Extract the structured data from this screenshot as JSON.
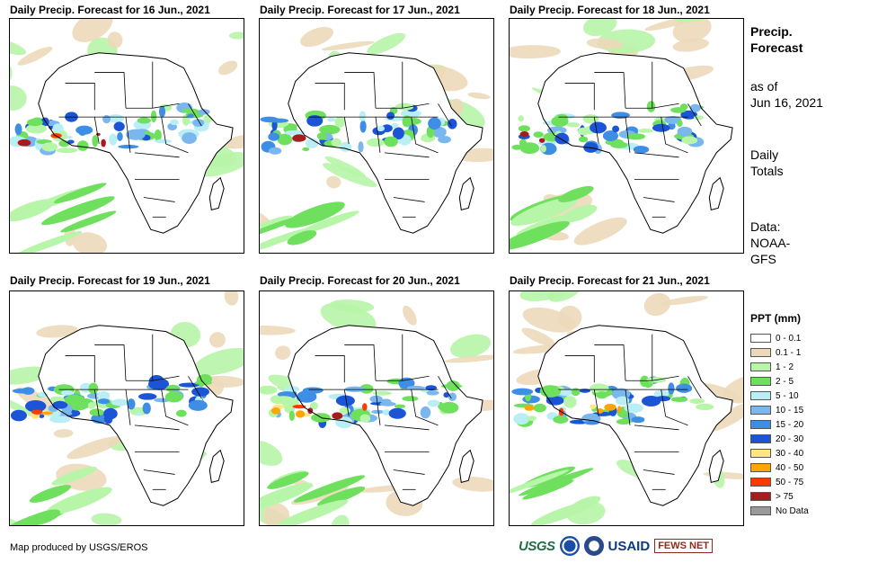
{
  "panels": [
    {
      "title": "Daily Precip. Forecast for 16 Jun., 2021"
    },
    {
      "title": "Daily Precip. Forecast for 17 Jun., 2021"
    },
    {
      "title": "Daily Precip. Forecast for 18 Jun., 2021"
    },
    {
      "title": "Daily Precip. Forecast for 19 Jun., 2021"
    },
    {
      "title": "Daily Precip. Forecast for 20 Jun., 2021"
    },
    {
      "title": "Daily Precip. Forecast for 21 Jun., 2021"
    }
  ],
  "sidebar": {
    "title_line1": "Precip.",
    "title_line2": "Forecast",
    "asof_line1": "as of",
    "asof_line2": "Jun 16, 2021",
    "daily_line1": "Daily",
    "daily_line2": "Totals",
    "data_line1": "Data:",
    "data_line2": "NOAA-",
    "data_line3": "GFS"
  },
  "legend": {
    "title": "PPT (mm)",
    "items": [
      {
        "label": "0 - 0.1",
        "color": "#ffffff"
      },
      {
        "label": "0.1 - 1",
        "color": "#ecd9b9"
      },
      {
        "label": "1 - 2",
        "color": "#b7f5a9"
      },
      {
        "label": "2 - 5",
        "color": "#6ee05e"
      },
      {
        "label": "5 - 10",
        "color": "#b8eef4"
      },
      {
        "label": "10 - 15",
        "color": "#7ab7ee"
      },
      {
        "label": "15 - 20",
        "color": "#3f8ee6"
      },
      {
        "label": "20 - 30",
        "color": "#1b55d6"
      },
      {
        "label": "30 - 40",
        "color": "#ffe680"
      },
      {
        "label": "40 - 50",
        "color": "#ffa500"
      },
      {
        "label": "50 - 75",
        "color": "#ff3a00"
      },
      {
        "label": "> 75",
        "color": "#a61c1c"
      },
      {
        "label": "No Data",
        "color": "#9a9a9a"
      }
    ]
  },
  "footer": {
    "text": "Map produced by USGS/EROS"
  },
  "logos": {
    "usgs": "USGS",
    "usaid": "USAID",
    "fews": "FEWS NET"
  }
}
